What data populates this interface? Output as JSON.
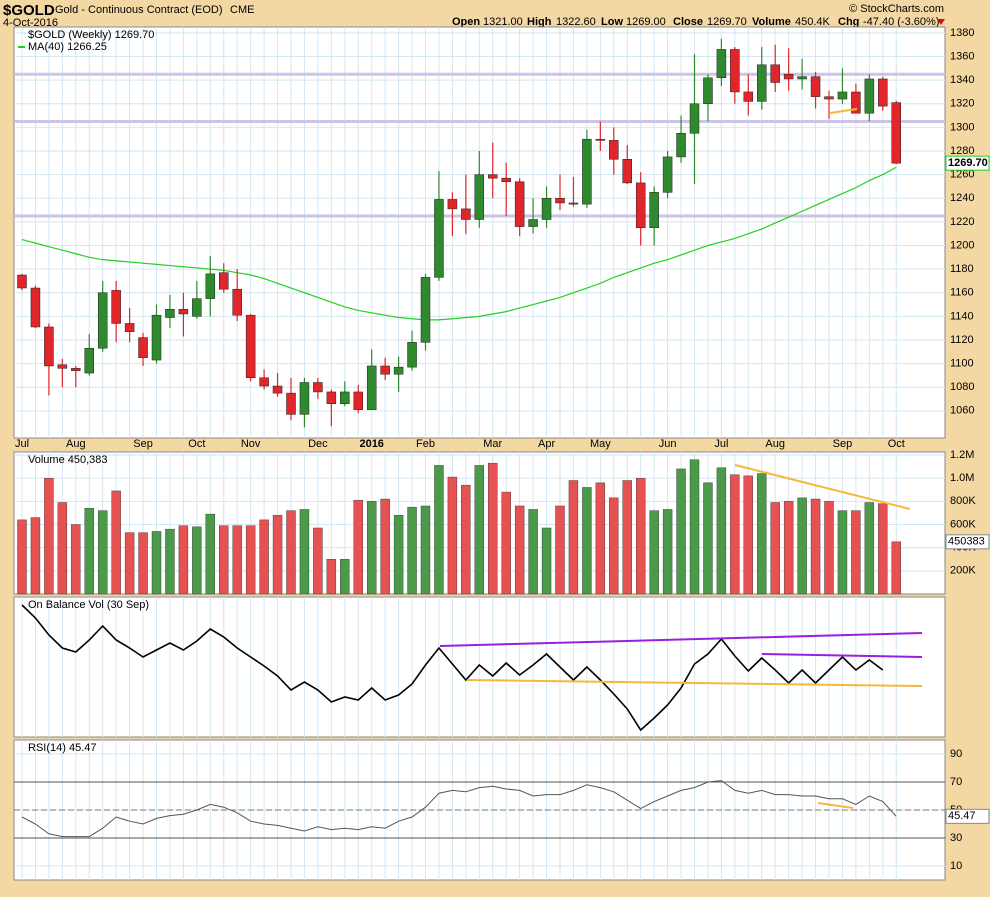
{
  "header": {
    "symbol": "$GOLD",
    "name": "Gold - Continuous Contract (EOD)",
    "exchange": "CME",
    "date": "4-Oct-2016",
    "copyright": "© StockCharts.com",
    "quote": [
      {
        "label": "Open",
        "value": "1321.00"
      },
      {
        "label": "High",
        "value": "1322.60"
      },
      {
        "label": "Low",
        "value": "1269.00"
      },
      {
        "label": "Close",
        "value": "1269.70"
      },
      {
        "label": "Volume",
        "value": "450.4K"
      },
      {
        "label": "Chg",
        "value": "-47.40 (-3.60%)"
      }
    ]
  },
  "chart_data": [
    {
      "type": "candlestick",
      "legend": "$GOLD (Weekly) 1269.70",
      "last_label": "1269.70",
      "up_color": "#2f8a2f",
      "down_color": "#e0262b",
      "categories": [
        "Jul",
        null,
        null,
        null,
        "Aug",
        null,
        null,
        null,
        null,
        "Sep",
        null,
        null,
        null,
        "Oct",
        null,
        null,
        null,
        "Nov",
        null,
        null,
        null,
        null,
        "Dec",
        null,
        null,
        null,
        "2016",
        null,
        null,
        null,
        "Feb",
        null,
        null,
        null,
        null,
        "Mar",
        null,
        null,
        null,
        "Apr",
        null,
        null,
        null,
        "May",
        null,
        null,
        null,
        null,
        "Jun",
        null,
        null,
        null,
        "Jul",
        null,
        null,
        null,
        "Aug",
        null,
        null,
        null,
        null,
        "Sep",
        null,
        null,
        null,
        "Oct"
      ],
      "open": [
        1175,
        1164,
        1131,
        1099,
        1096,
        1092,
        1113,
        1162,
        1134,
        1122,
        1103,
        1139,
        1146,
        1140,
        1155,
        1177,
        1163,
        1141,
        1088,
        1081,
        1075,
        1057,
        1084,
        1076,
        1066,
        1076,
        1061,
        1098,
        1091,
        1097,
        1118,
        1173,
        1239,
        1231,
        1222,
        1260,
        1257,
        1254,
        1216,
        1222,
        1240,
        1236,
        1235,
        1290,
        1289,
        1273,
        1253,
        1215,
        1245,
        1275,
        1295,
        1320,
        1342,
        1366,
        1330,
        1322,
        1353,
        1345,
        1341,
        1343,
        1326,
        1324,
        1330,
        1312,
        1341,
        1321
      ],
      "high": [
        1176,
        1166,
        1134,
        1104,
        1098,
        1125,
        1170,
        1170,
        1147,
        1126,
        1150,
        1158,
        1160,
        1170,
        1191,
        1185,
        1180,
        1142,
        1095,
        1092,
        1088,
        1088,
        1088,
        1078,
        1085,
        1082,
        1112,
        1105,
        1106,
        1128,
        1176,
        1263,
        1245,
        1260,
        1280,
        1287,
        1270,
        1257,
        1240,
        1250,
        1260,
        1258,
        1298,
        1305,
        1300,
        1285,
        1262,
        1250,
        1280,
        1310,
        1362,
        1345,
        1375,
        1368,
        1345,
        1368,
        1370,
        1367,
        1358,
        1347,
        1331,
        1350,
        1337,
        1345,
        1343,
        1322.6
      ],
      "low": [
        1162,
        1130,
        1073,
        1080,
        1080,
        1090,
        1110,
        1118,
        1118,
        1098,
        1100,
        1130,
        1123,
        1138,
        1140,
        1160,
        1136,
        1085,
        1078,
        1072,
        1052,
        1046,
        1070,
        1047,
        1064,
        1058,
        1062,
        1086,
        1076,
        1094,
        1111,
        1170,
        1208,
        1210,
        1215,
        1240,
        1225,
        1208,
        1210,
        1215,
        1230,
        1233,
        1232,
        1280,
        1260,
        1252,
        1200,
        1200,
        1240,
        1270,
        1252,
        1305,
        1335,
        1320,
        1310,
        1315,
        1330,
        1331,
        1332,
        1316,
        1307,
        1320,
        1312,
        1305,
        1314,
        1269
      ],
      "close": [
        1164,
        1131,
        1098,
        1096,
        1094,
        1113,
        1160,
        1134,
        1127,
        1105,
        1141,
        1146,
        1142,
        1155,
        1176,
        1163,
        1141,
        1088,
        1081,
        1075,
        1057,
        1084,
        1076,
        1066,
        1076,
        1061,
        1098,
        1091,
        1097,
        1118,
        1173,
        1239,
        1231,
        1222,
        1260,
        1257,
        1254,
        1216,
        1222,
        1240,
        1236,
        1235,
        1290,
        1289,
        1273,
        1253,
        1215,
        1245,
        1275,
        1295,
        1320,
        1342,
        1366,
        1330,
        1322,
        1353,
        1338,
        1341,
        1343,
        1326,
        1324,
        1330,
        1312,
        1341,
        1318,
        1269.7
      ],
      "ma": {
        "name": "MA(40) 1266.25",
        "color": "#22d022",
        "values": [
          1205,
          1202,
          1199,
          1196,
          1193,
          1190,
          1188,
          1187,
          1186,
          1185,
          1184,
          1183,
          1182,
          1181,
          1180,
          1179,
          1177,
          1175,
          1172,
          1168,
          1164,
          1160,
          1156,
          1152,
          1148,
          1145,
          1143,
          1141,
          1139,
          1138,
          1137,
          1137,
          1138,
          1139,
          1140,
          1142,
          1144,
          1147,
          1150,
          1153,
          1156,
          1160,
          1164,
          1168,
          1173,
          1177,
          1181,
          1185,
          1188,
          1192,
          1196,
          1200,
          1203,
          1206,
          1210,
          1214,
          1219,
          1224,
          1229,
          1234,
          1239,
          1244,
          1249,
          1255,
          1260,
          1266.25
        ]
      },
      "levels": [
        1345,
        1305,
        1225
      ],
      "level_color": "#cdc3e6",
      "ylim": [
        1037,
        1385
      ],
      "yticks": [
        1060,
        1080,
        1100,
        1120,
        1140,
        1160,
        1180,
        1200,
        1220,
        1240,
        1260,
        1280,
        1300,
        1320,
        1340,
        1360,
        1380
      ],
      "grid": true
    },
    {
      "type": "bar",
      "legend": "Volume 450,383",
      "last_label": "450383",
      "up_color": "#4a9a4a",
      "down_color": "#e65252",
      "values": [
        640000,
        660000,
        1000000,
        790000,
        600000,
        740000,
        720000,
        890000,
        530000,
        530000,
        540000,
        560000,
        590000,
        580000,
        690000,
        590000,
        590000,
        590000,
        640000,
        680000,
        720000,
        730000,
        570000,
        300000,
        300000,
        810000,
        800000,
        820000,
        680000,
        750000,
        760000,
        1110000,
        1010000,
        940000,
        1110000,
        1130000,
        880000,
        760000,
        730000,
        570000,
        760000,
        980000,
        920000,
        960000,
        830000,
        980000,
        1000000,
        720000,
        730000,
        1080000,
        1160000,
        960000,
        1090000,
        1030000,
        1020000,
        1040000,
        790000,
        800000,
        830000,
        820000,
        800000,
        720000,
        720000,
        790000,
        780000,
        450383
      ],
      "ylim": [
        0,
        1226000
      ],
      "yticks": [
        {
          "value": 200000,
          "label": "200K"
        },
        {
          "value": 400000,
          "label": "400K"
        },
        {
          "value": 600000,
          "label": "600K"
        },
        {
          "value": 800000,
          "label": "800K"
        },
        {
          "value": 1000000,
          "label": "1.0M"
        },
        {
          "value": 1200000,
          "label": "1.2M"
        }
      ],
      "grid": true
    },
    {
      "type": "line",
      "legend": "On Balance Vol (30 Sep)",
      "color": "#000000",
      "values": [
        13.2,
        11.9,
        10.2,
        8.9,
        8.5,
        9.7,
        11.1,
        9.7,
        8.9,
        8.0,
        8.7,
        9.4,
        8.7,
        9.6,
        10.8,
        10.0,
        8.9,
        8.0,
        7.1,
        6.1,
        4.7,
        5.5,
        4.7,
        3.5,
        4.0,
        3.7,
        4.9,
        3.7,
        4.2,
        5.3,
        7.2,
        8.9,
        7.3,
        5.7,
        7.2,
        6.1,
        7.4,
        6.2,
        7.2,
        8.3,
        7.0,
        5.7,
        7.0,
        5.7,
        4.3,
        2.8,
        0.7,
        1.9,
        3.2,
        4.9,
        7.3,
        8.3,
        9.8,
        8.1,
        6.6,
        7.9,
        6.7,
        5.4,
        6.7,
        5.4,
        6.7,
        8.0,
        6.7,
        7.7,
        6.7,
        null
      ],
      "ylim": [
        0,
        14
      ],
      "grid": true
    },
    {
      "type": "line",
      "legend": "RSI(14) 45.47",
      "last_label": "45.47",
      "color": "#555555",
      "values": [
        45,
        40,
        33,
        31,
        31,
        31,
        37,
        45,
        42,
        40,
        44,
        46,
        47,
        50,
        54,
        52,
        48,
        42,
        40,
        39,
        37,
        35,
        38,
        36,
        37,
        36,
        38,
        37,
        42,
        45,
        52,
        62,
        64,
        63,
        66,
        67,
        65,
        64,
        60,
        61,
        61,
        64,
        68,
        66,
        63,
        57,
        51,
        56,
        60,
        64,
        66,
        70,
        71,
        64,
        62,
        64,
        61,
        61,
        60,
        60,
        58,
        58,
        54,
        60,
        56,
        45.47
      ],
      "ref_lines": [
        30,
        50,
        70
      ],
      "ylim": [
        0,
        100
      ],
      "yticks": [
        10,
        30,
        50,
        70,
        90
      ],
      "grid": true
    }
  ]
}
